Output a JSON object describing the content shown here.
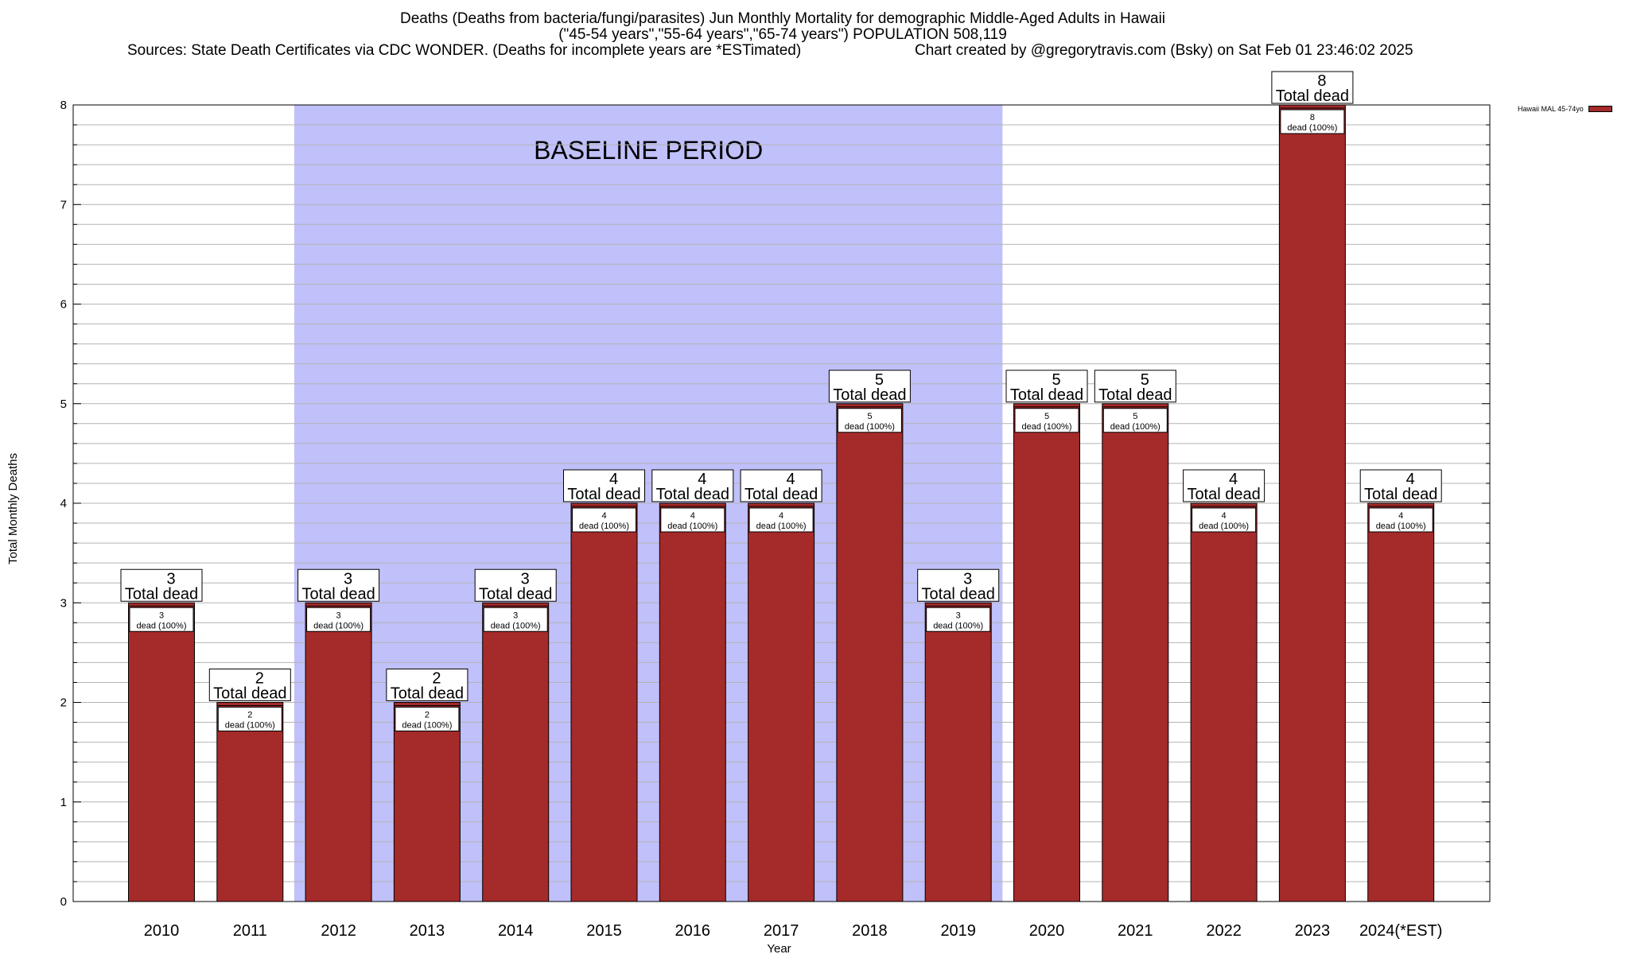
{
  "title_lines": [
    "Deaths (Deaths from bacteria/fungi/parasites) Jun Monthly Mortality for demographic Middle-Aged Adults in Hawaii",
    "(\"45-54 years\",\"55-64 years\",\"65-74 years\") POPULATION 508,119",
    "Sources: State Death Certificates via CDC WONDER. (Deaths for incomplete years are *ESTimated)",
    "Chart created by @gregorytravis.com (Bsky) on Sat Feb 01 23:46:02 2025"
  ],
  "colors": {
    "bar": "#a52a2a",
    "baseline_shade": "#c0c0fa",
    "grid": "#b4b4b4"
  },
  "chart_data": {
    "type": "bar",
    "categories": [
      "2010",
      "2011",
      "2012",
      "2013",
      "2014",
      "2015",
      "2016",
      "2017",
      "2018",
      "2019",
      "2020",
      "2021",
      "2022",
      "2023",
      "2024(*EST)"
    ],
    "series": [
      {
        "name": "Hawaii MAL 45-74yo",
        "values": [
          3,
          2,
          3,
          2,
          3,
          4,
          4,
          4,
          5,
          3,
          5,
          5,
          4,
          8,
          4
        ]
      }
    ],
    "xlabel": "Year",
    "ylabel": "Total Monthly Deaths",
    "ylim": [
      0,
      8
    ],
    "yticks": [
      0,
      1,
      2,
      3,
      4,
      5,
      6,
      7,
      8
    ],
    "grid": true,
    "legend_position": "top-right",
    "baseline_period": {
      "label": "BASELINE PERIOD",
      "from": "2012",
      "to": "2019"
    },
    "total_label": "Total dead",
    "inner_label_suffix": "dead (100%)"
  }
}
